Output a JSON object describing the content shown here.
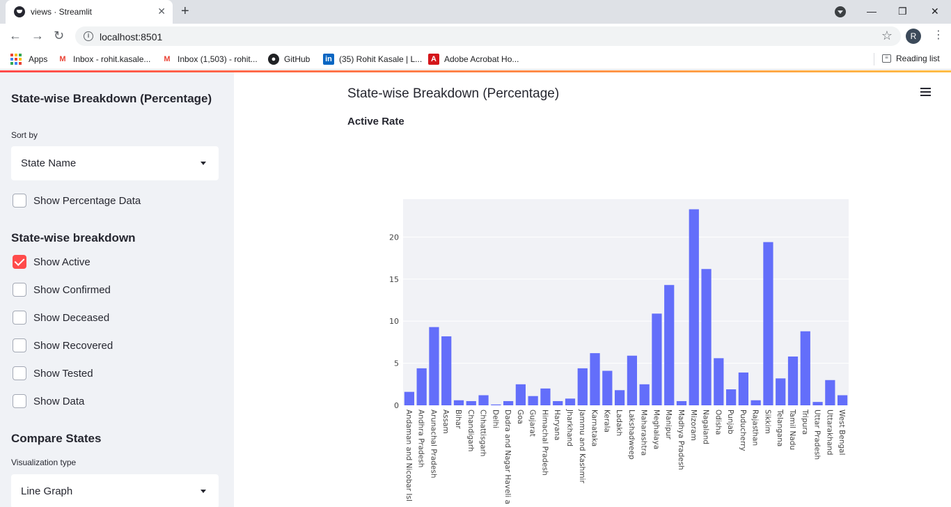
{
  "browser": {
    "tab_title": "views · Streamlit",
    "url": "localhost:8501",
    "profile_initial": "R",
    "bookmarks": [
      {
        "label": "Apps",
        "icon": "apps-grid-icon"
      },
      {
        "label": "Inbox - rohit.kasale...",
        "icon": "gmail-icon"
      },
      {
        "label": "Inbox (1,503) - rohit...",
        "icon": "gmail-icon"
      },
      {
        "label": "GitHub",
        "icon": "github-icon"
      },
      {
        "label": "(35) Rohit Kasale | L...",
        "icon": "linkedin-icon"
      },
      {
        "label": "Adobe Acrobat Ho...",
        "icon": "acrobat-icon"
      }
    ],
    "reading_list": "Reading list"
  },
  "sidebar": {
    "heading1": "State-wise Breakdown (Percentage)",
    "sort_label": "Sort by",
    "sort_value": "State Name",
    "show_percentage": "Show Percentage Data",
    "heading2": "State-wise breakdown",
    "checkboxes": [
      {
        "label": "Show Active",
        "checked": true
      },
      {
        "label": "Show Confirmed",
        "checked": false
      },
      {
        "label": "Show Deceased",
        "checked": false
      },
      {
        "label": "Show Recovered",
        "checked": false
      },
      {
        "label": "Show Tested",
        "checked": false
      },
      {
        "label": "Show Data",
        "checked": false
      }
    ],
    "heading3": "Compare States",
    "viz_label": "Visualization type",
    "viz_value": "Line Graph"
  },
  "main": {
    "title": "State-wise Breakdown (Percentage)",
    "subtitle": "Active Rate"
  },
  "colors": {
    "bar": "#636efa",
    "plot_bg": "#f1f2f6",
    "accent": "#ff4b4b"
  },
  "chart_data": {
    "type": "bar",
    "categories": [
      "Andaman and Nicobar Isl",
      "Andhra Pradesh",
      "Arunachal Pradesh",
      "Assam",
      "Bihar",
      "Chandigarh",
      "Chhattisgarh",
      "Delhi",
      "Dadra and Nagar Haveli a",
      "Goa",
      "Gujarat",
      "Himachal Pradesh",
      "Haryana",
      "Jharkhand",
      "Jammu and Kashmir",
      "Karnataka",
      "Kerala",
      "Ladakh",
      "Lakshadweep",
      "Maharashtra",
      "Meghalaya",
      "Manipur",
      "Madhya Pradesh",
      "Mizoram",
      "Nagaland",
      "Odisha",
      "Punjab",
      "Puducherry",
      "Rajasthan",
      "Sikkim",
      "Telangana",
      "Tamil Nadu",
      "Tripura",
      "Uttar Pradesh",
      "Uttarakhand",
      "West Bengal"
    ],
    "values": [
      1.6,
      4.4,
      9.3,
      8.2,
      0.6,
      0.5,
      1.2,
      0.1,
      0.5,
      2.5,
      1.1,
      2.0,
      0.5,
      0.8,
      4.4,
      6.2,
      4.1,
      1.8,
      5.9,
      2.5,
      10.9,
      14.3,
      0.5,
      23.3,
      16.2,
      5.6,
      1.9,
      3.9,
      0.6,
      19.4,
      3.2,
      5.8,
      8.8,
      0.4,
      3.0,
      1.2
    ],
    "title": "",
    "xlabel": "",
    "ylabel": "",
    "ylim": [
      0,
      24.5
    ],
    "yticks": [
      "0",
      "5",
      "10",
      "15",
      "20"
    ],
    "grid": true
  }
}
